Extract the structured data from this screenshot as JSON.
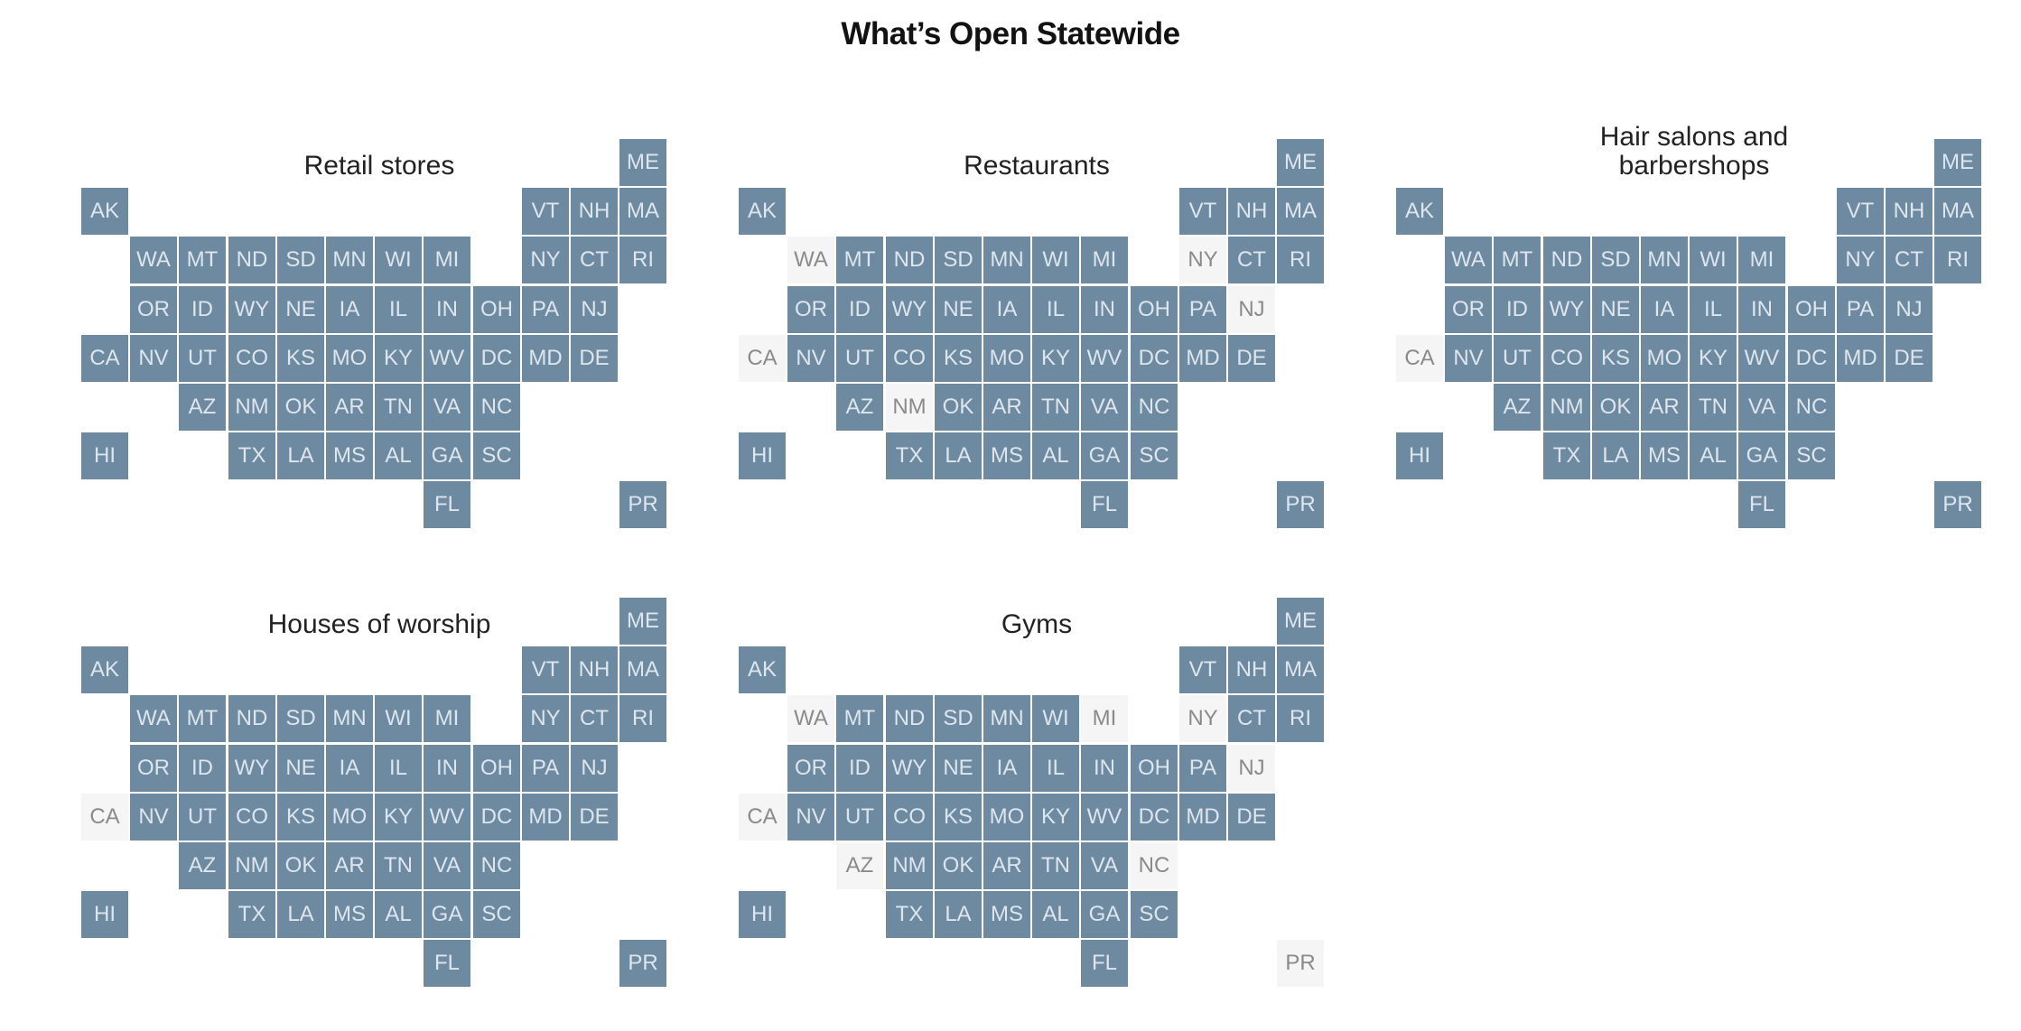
{
  "page": {
    "title": "What’s Open Statewide"
  },
  "colors": {
    "open": "#6e8aa0",
    "open_text": "#dde6ee",
    "closed": "#f5f5f5",
    "closed_text": "#8a8a8a"
  },
  "chart_data": {
    "type": "tile-grid-map",
    "legend": "none",
    "status_values": [
      "open",
      "closed"
    ],
    "grid_layout": {
      "ME": [
        11,
        0
      ],
      "AK": [
        0,
        1
      ],
      "VT": [
        9,
        1
      ],
      "NH": [
        10,
        1
      ],
      "MA": [
        11,
        1
      ],
      "WA": [
        1,
        2
      ],
      "MT": [
        2,
        2
      ],
      "ND": [
        3,
        2
      ],
      "SD": [
        4,
        2
      ],
      "MN": [
        5,
        2
      ],
      "WI": [
        6,
        2
      ],
      "MI": [
        7,
        2
      ],
      "NY": [
        9,
        2
      ],
      "CT": [
        10,
        2
      ],
      "RI": [
        11,
        2
      ],
      "OR": [
        1,
        3
      ],
      "ID": [
        2,
        3
      ],
      "WY": [
        3,
        3
      ],
      "NE": [
        4,
        3
      ],
      "IA": [
        5,
        3
      ],
      "IL": [
        6,
        3
      ],
      "IN": [
        7,
        3
      ],
      "OH": [
        8,
        3
      ],
      "PA": [
        9,
        3
      ],
      "NJ": [
        10,
        3
      ],
      "CA": [
        0,
        4
      ],
      "NV": [
        1,
        4
      ],
      "UT": [
        2,
        4
      ],
      "CO": [
        3,
        4
      ],
      "KS": [
        4,
        4
      ],
      "MO": [
        5,
        4
      ],
      "KY": [
        6,
        4
      ],
      "WV": [
        7,
        4
      ],
      "DC": [
        8,
        4
      ],
      "MD": [
        9,
        4
      ],
      "DE": [
        10,
        4
      ],
      "AZ": [
        2,
        5
      ],
      "NM": [
        3,
        5
      ],
      "OK": [
        4,
        5
      ],
      "AR": [
        5,
        5
      ],
      "TN": [
        6,
        5
      ],
      "VA": [
        7,
        5
      ],
      "NC": [
        8,
        5
      ],
      "HI": [
        0,
        6
      ],
      "TX": [
        3,
        6
      ],
      "LA": [
        4,
        6
      ],
      "MS": [
        5,
        6
      ],
      "AL": [
        6,
        6
      ],
      "GA": [
        7,
        6
      ],
      "SC": [
        8,
        6
      ],
      "FL": [
        7,
        7
      ],
      "PR": [
        11,
        7
      ]
    },
    "panels": [
      {
        "id": "retail",
        "title_lines": [
          "Retail stores"
        ],
        "closed": []
      },
      {
        "id": "restaurants",
        "title_lines": [
          "Restaurants"
        ],
        "closed": [
          "WA",
          "NY",
          "NJ",
          "CA",
          "NM"
        ]
      },
      {
        "id": "salons",
        "title_lines": [
          "Hair salons and",
          "barbershops"
        ],
        "closed": [
          "CA"
        ]
      },
      {
        "id": "worship",
        "title_lines": [
          "Houses of worship"
        ],
        "closed": [
          "CA"
        ]
      },
      {
        "id": "gyms",
        "title_lines": [
          "Gyms"
        ],
        "closed": [
          "WA",
          "MI",
          "NY",
          "NJ",
          "CA",
          "AZ",
          "NC",
          "PR"
        ]
      }
    ]
  }
}
